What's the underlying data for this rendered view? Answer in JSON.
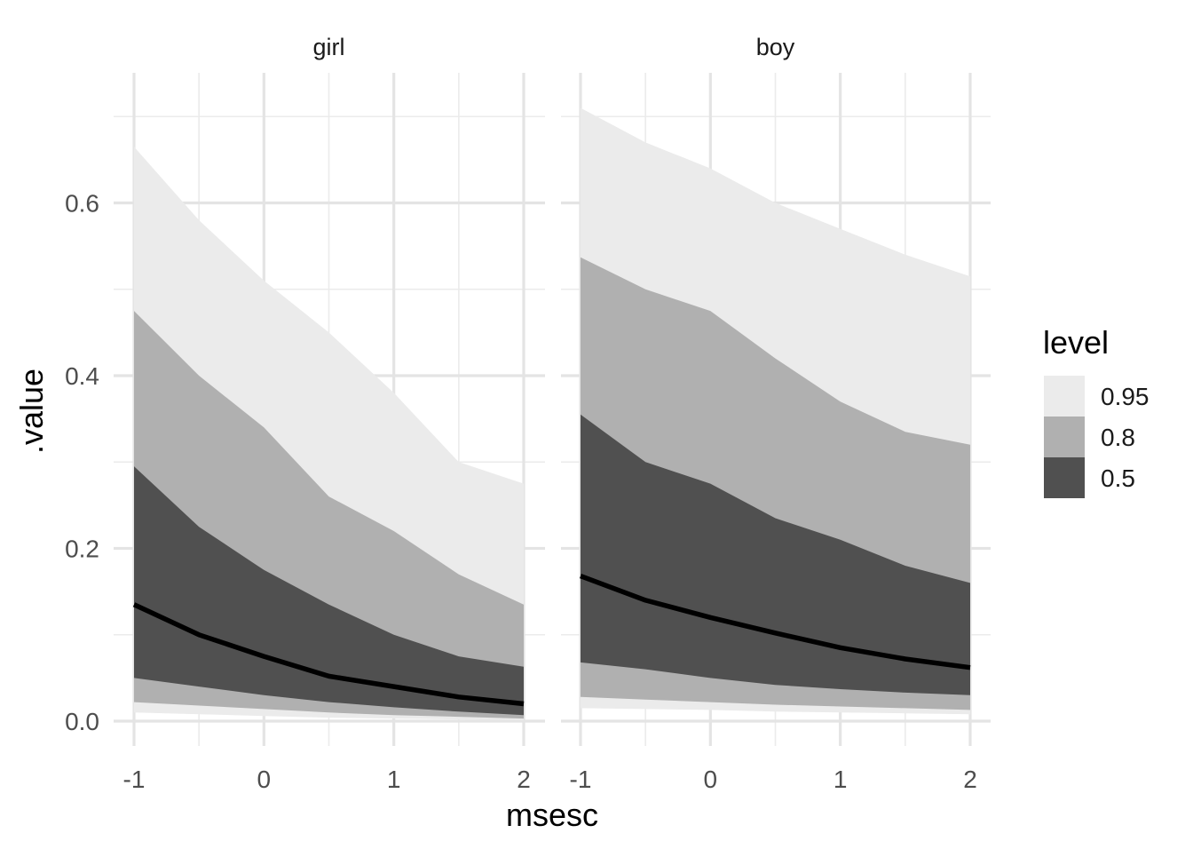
{
  "chart_data": {
    "type": "area",
    "xlabel": "msesc",
    "ylabel": ".value",
    "xlim": [
      -1,
      2
    ],
    "ylim": [
      0,
      0.7
    ],
    "x_ticks": [
      -1,
      0,
      1,
      2
    ],
    "x_tick_labels": [
      "-1",
      "0",
      "1",
      "2"
    ],
    "y_ticks": [
      0,
      0.2,
      0.4,
      0.6
    ],
    "y_tick_labels": [
      "0.0",
      "0.2",
      "0.4",
      "0.6"
    ],
    "grid": true,
    "legend": {
      "title": "level",
      "placement": "right",
      "entries": [
        {
          "label": "0.95",
          "color": "#ebebeb"
        },
        {
          "label": "0.8",
          "color": "#b0b0b0"
        },
        {
          "label": "0.5",
          "color": "#505050"
        }
      ]
    },
    "median_line_color": "#000000",
    "panels": [
      {
        "strip": "girl",
        "x": [
          -1,
          -0.5,
          0,
          0.5,
          1,
          1.5,
          2
        ],
        "median": [
          0.135,
          0.1,
          0.075,
          0.052,
          0.04,
          0.028,
          0.02
        ],
        "bands": [
          {
            "level": "0.95",
            "lower": [
              0.01,
              0.008,
              0.006,
              0.004,
              0.003,
              0.002,
              0.001
            ],
            "upper": [
              0.665,
              0.58,
              0.51,
              0.45,
              0.38,
              0.3,
              0.275
            ]
          },
          {
            "level": "0.8",
            "lower": [
              0.022,
              0.018,
              0.014,
              0.01,
              0.007,
              0.005,
              0.003
            ],
            "upper": [
              0.475,
              0.4,
              0.34,
              0.26,
              0.22,
              0.17,
              0.135
            ]
          },
          {
            "level": "0.5",
            "lower": [
              0.05,
              0.04,
              0.03,
              0.022,
              0.016,
              0.011,
              0.007
            ],
            "upper": [
              0.295,
              0.225,
              0.175,
              0.135,
              0.1,
              0.075,
              0.063
            ]
          }
        ]
      },
      {
        "strip": "boy",
        "x": [
          -1,
          -0.5,
          0,
          0.5,
          1,
          1.5,
          2
        ],
        "median": [
          0.168,
          0.14,
          0.12,
          0.102,
          0.085,
          0.072,
          0.062
        ],
        "bands": [
          {
            "level": "0.95",
            "lower": [
              0.015,
              0.014,
              0.013,
              0.011,
              0.01,
              0.009,
              0.008
            ],
            "upper": [
              0.71,
              0.67,
              0.64,
              0.6,
              0.57,
              0.54,
              0.515
            ]
          },
          {
            "level": "0.8",
            "lower": [
              0.028,
              0.025,
              0.022,
              0.019,
              0.017,
              0.015,
              0.013
            ],
            "upper": [
              0.537,
              0.5,
              0.475,
              0.42,
              0.37,
              0.335,
              0.32
            ]
          },
          {
            "level": "0.5",
            "lower": [
              0.068,
              0.06,
              0.05,
              0.042,
              0.037,
              0.033,
              0.03
            ],
            "upper": [
              0.355,
              0.3,
              0.275,
              0.235,
              0.21,
              0.18,
              0.16
            ]
          }
        ]
      }
    ]
  }
}
